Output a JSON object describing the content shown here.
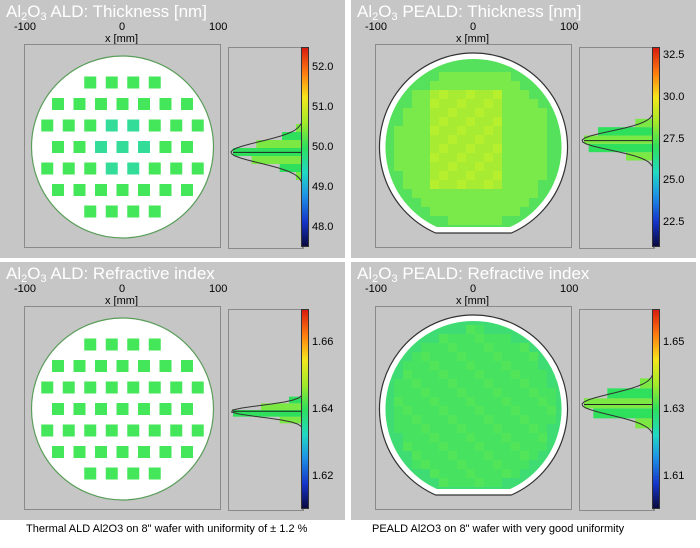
{
  "panels": [
    {
      "title_main": "Al",
      "title_sub": "2",
      "title_main2": "O",
      "title_sub2": "3",
      "title_rest": " ALD: Thickness [nm]",
      "xlabel": "x [mm]",
      "tick_left": "-100",
      "tick_mid": "0",
      "tick_right": "100",
      "pattern": "dots",
      "wafer": "round",
      "colorbar_ticks": [
        "52.0",
        "51.0",
        "50.0",
        "49.0",
        "48.0"
      ]
    },
    {
      "title_main": "Al",
      "title_sub": "2",
      "title_main2": "O",
      "title_sub2": "3",
      "title_rest": " PEALD: Thickness [nm]",
      "xlabel": "x [mm]",
      "tick_left": "-100",
      "tick_mid": "0",
      "tick_right": "100",
      "pattern": "full",
      "wafer": "flat",
      "colorbar_ticks": [
        "32.5",
        "30.0",
        "27.5",
        "25.0",
        "22.5"
      ]
    },
    {
      "title_main": "Al",
      "title_sub": "2",
      "title_main2": "O",
      "title_sub2": "3",
      "title_rest": " ALD: Refractive index",
      "xlabel": "x [mm]",
      "tick_left": "-100",
      "tick_mid": "0",
      "tick_right": "100",
      "pattern": "dots",
      "wafer": "round",
      "colorbar_ticks": [
        "1.66",
        "1.64",
        "1.62"
      ]
    },
    {
      "title_main": "Al",
      "title_sub": "2",
      "title_main2": "O",
      "title_sub2": "3",
      "title_rest": " PEALD: Refractive index",
      "xlabel": "x [mm]",
      "tick_left": "-100",
      "tick_mid": "0",
      "tick_right": "100",
      "pattern": "full",
      "wafer": "flat",
      "colorbar_ticks": [
        "1.65",
        "1.63",
        "1.61"
      ]
    }
  ],
  "captions": {
    "left": "Thermal ALD Al2O3 on 8\" wafer with uniformity of ± 1.2 %",
    "right": "PEALD Al2O3 on 8\" wafer with very good uniformity"
  },
  "colors": {
    "panel_bg": "#c6c6c6",
    "map_green": "#44e65a",
    "map_light": "#8ef03c",
    "map_cyan": "#33dd99",
    "colormap": [
      "#d81b0f",
      "#ff7f0f",
      "#f5e51b",
      "#9fea2a",
      "#2ee05b",
      "#21d9c4",
      "#1d8fe6",
      "#1533c7",
      "#0a0a40"
    ]
  },
  "chart_data": [
    {
      "type": "heatmap",
      "title": "Al2O3 ALD: Thickness [nm]",
      "xlabel": "x [mm]",
      "xlim": [
        -100,
        100
      ],
      "colorbar_range": [
        47.5,
        52.5
      ],
      "colorbar_ticks": [
        52.0,
        51.0,
        50.0,
        49.0,
        48.0
      ],
      "histogram": {
        "bins": [
          49.3,
          49.5,
          49.7,
          49.9,
          50.1,
          50.3,
          50.5
        ],
        "counts": [
          3,
          10,
          22,
          30,
          20,
          9,
          3
        ]
      }
    },
    {
      "type": "heatmap",
      "title": "Al2O3 PEALD: Thickness [nm]",
      "xlabel": "x [mm]",
      "xlim": [
        -100,
        100
      ],
      "colorbar_range": [
        21.0,
        33.0
      ],
      "colorbar_ticks": [
        32.5,
        30.0,
        27.5,
        25.0,
        22.5
      ],
      "histogram": {
        "bins": [
          26.5,
          27.0,
          27.5,
          28.0,
          28.5
        ],
        "counts": [
          12,
          28,
          30,
          24,
          8
        ]
      }
    },
    {
      "type": "heatmap",
      "title": "Al2O3 ALD: Refractive index",
      "xlabel": "x [mm]",
      "xlim": [
        -100,
        100
      ],
      "colorbar_range": [
        1.61,
        1.67
      ],
      "colorbar_ticks": [
        1.66,
        1.64,
        1.62
      ],
      "histogram": {
        "bins": [
          1.637,
          1.639,
          1.641,
          1.643
        ],
        "counts": [
          10,
          30,
          18,
          6
        ]
      }
    },
    {
      "type": "heatmap",
      "title": "Al2O3 PEALD: Refractive index",
      "xlabel": "x [mm]",
      "xlim": [
        -100,
        100
      ],
      "colorbar_range": [
        1.6,
        1.66
      ],
      "colorbar_ticks": [
        1.65,
        1.63,
        1.61
      ],
      "histogram": {
        "bins": [
          1.626,
          1.629,
          1.632,
          1.635,
          1.638
        ],
        "counts": [
          8,
          26,
          30,
          20,
          6
        ]
      }
    }
  ]
}
